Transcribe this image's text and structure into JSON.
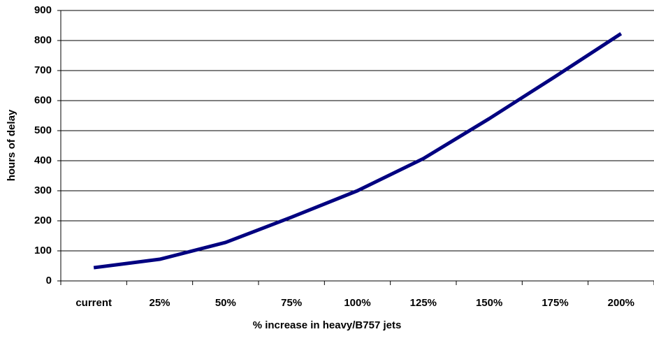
{
  "chart_data": {
    "type": "line",
    "categories": [
      "current",
      "25%",
      "50%",
      "75%",
      "100%",
      "125%",
      "150%",
      "175%",
      "200%"
    ],
    "series": [
      {
        "name": "hours of delay",
        "color": "#000080",
        "values": [
          44,
          72,
          128,
          212,
          300,
          407,
          540,
          680,
          823
        ]
      }
    ],
    "x_label": "% increase in heavy/B757 jets",
    "y_label": "hours of delay",
    "ylim": [
      0,
      900
    ],
    "yticks": [
      0,
      100,
      200,
      300,
      400,
      500,
      600,
      700,
      800,
      900
    ],
    "grid": true
  }
}
